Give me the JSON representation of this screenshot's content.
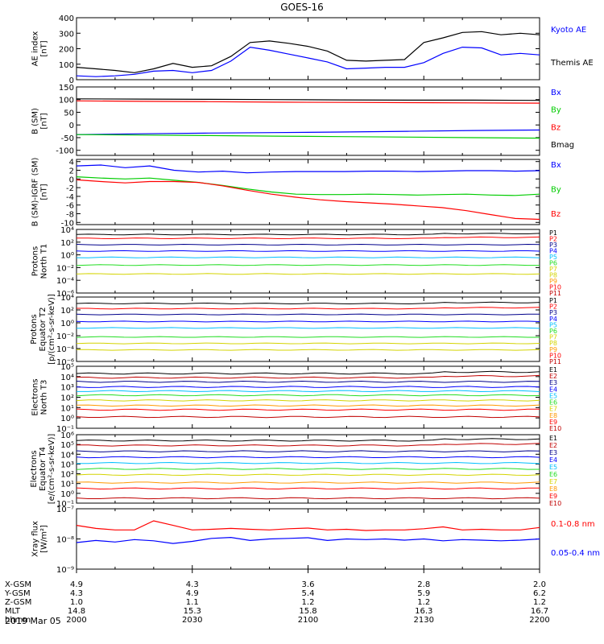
{
  "title": "GOES-16",
  "date_label": "2019 Mar 05",
  "colors": {
    "black": "#000000",
    "blue": "#0000ff",
    "green": "#00cc00",
    "red": "#ff0000",
    "navy": "#00008b",
    "cyan": "#00bfff",
    "teal": "#00c8c8",
    "lime": "#22dd22",
    "yellow": "#d4d400",
    "orange": "#ff9900",
    "darkred": "#c00000"
  },
  "chart_data": [
    {
      "id": "ae",
      "type": "line",
      "ylabel": [
        "AE index",
        "[nT]"
      ],
      "ylim": [
        0,
        400
      ],
      "yticks": [
        "0",
        "100",
        "200",
        "300",
        "400"
      ],
      "x_hhmm": [
        "2000",
        "2005",
        "2010",
        "2015",
        "2020",
        "2025",
        "2030",
        "2035",
        "2040",
        "2045",
        "2050",
        "2055",
        "2100",
        "2105",
        "2110",
        "2115",
        "2120",
        "2125",
        "2130",
        "2135",
        "2140",
        "2145",
        "2150",
        "2155",
        "2200"
      ],
      "series": [
        {
          "name": "Kyoto AE",
          "color": "blue",
          "values": [
            25,
            20,
            25,
            35,
            55,
            60,
            45,
            60,
            120,
            210,
            190,
            165,
            140,
            115,
            70,
            75,
            80,
            80,
            110,
            170,
            210,
            205,
            160,
            170,
            160
          ]
        },
        {
          "name": "Themis AE",
          "color": "black",
          "values": [
            80,
            70,
            60,
            45,
            70,
            105,
            80,
            90,
            150,
            240,
            250,
            235,
            215,
            185,
            125,
            120,
            125,
            130,
            240,
            270,
            305,
            310,
            290,
            300,
            290
          ]
        }
      ]
    },
    {
      "id": "b",
      "type": "line",
      "ylabel": [
        "B (SM)",
        "[nT]"
      ],
      "ylim": [
        -120,
        150
      ],
      "yticks": [
        "-100",
        "-50",
        "0",
        "50",
        "100",
        "150"
      ],
      "series": [
        {
          "name": "Bx",
          "color": "blue",
          "values": [
            -38,
            -35,
            -32,
            -30,
            -28,
            -25,
            -22,
            -20
          ]
        },
        {
          "name": "By",
          "color": "green",
          "values": [
            -38,
            -40,
            -42,
            -44,
            -46,
            -48,
            -50,
            -52
          ]
        },
        {
          "name": "Bz",
          "color": "red",
          "values": [
            95,
            93,
            92,
            90,
            89,
            88,
            87,
            86
          ]
        },
        {
          "name": "Bmag",
          "color": "black",
          "values": [
            103,
            102,
            101,
            100,
            99,
            98,
            98,
            97
          ]
        }
      ]
    },
    {
      "id": "bigrf",
      "type": "line",
      "ylabel": [
        "B (SM)-IGRF (SM)",
        "[nT]"
      ],
      "ylim": [
        -10.5,
        4.5
      ],
      "yticks": [
        "-10",
        "-8",
        "-6",
        "-4",
        "-2",
        "0",
        "2",
        "4"
      ],
      "series": [
        {
          "name": "Bx",
          "color": "blue",
          "values": [
            3.0,
            3.2,
            2.6,
            3.0,
            2.0,
            1.6,
            1.8,
            1.4,
            1.6,
            1.7,
            1.7,
            1.7,
            1.8,
            1.8,
            1.7,
            1.8,
            1.9,
            1.9,
            1.8,
            1.9
          ]
        },
        {
          "name": "By",
          "color": "green",
          "values": [
            0.5,
            0.2,
            0.0,
            0.2,
            -0.3,
            -0.8,
            -1.5,
            -2.3,
            -3.0,
            -3.5,
            -3.6,
            -3.6,
            -3.5,
            -3.6,
            -3.7,
            -3.6,
            -3.5,
            -3.7,
            -3.8,
            -3.5
          ]
        },
        {
          "name": "Bz",
          "color": "red",
          "values": [
            -0.2,
            -0.6,
            -0.9,
            -0.6,
            -0.6,
            -0.8,
            -1.6,
            -2.6,
            -3.5,
            -4.2,
            -4.8,
            -5.2,
            -5.5,
            -5.8,
            -6.2,
            -6.6,
            -7.3,
            -8.2,
            -9.1,
            -9.3
          ]
        }
      ]
    },
    {
      "id": "p_north",
      "type": "line",
      "ylabel": [
        "Protons",
        "North T1"
      ],
      "log": true,
      "ylim_exp": [
        -6,
        4
      ],
      "ytick_exps": [
        -6,
        -4,
        -2,
        0,
        2,
        4
      ],
      "channels": [
        {
          "name": "P1",
          "color": "black",
          "level": 3.2
        },
        {
          "name": "P2",
          "color": "red",
          "level": 2.6
        },
        {
          "name": "P3",
          "color": "navy",
          "level": 1.6
        },
        {
          "name": "P4",
          "color": "blue",
          "level": 0.6
        },
        {
          "name": "P5",
          "color": "cyan",
          "level": -0.4
        },
        {
          "name": "P6",
          "color": "lime",
          "level": -1.6
        },
        {
          "name": "P7",
          "color": "yellow",
          "level": -3.0
        },
        {
          "name": "P8",
          "color": "yellow",
          "level": null
        },
        {
          "name": "P9",
          "color": "orange",
          "level": null
        },
        {
          "name": "P10",
          "color": "red",
          "level": null
        },
        {
          "name": "P11",
          "color": "darkred",
          "level": null
        }
      ]
    },
    {
      "id": "p_equator",
      "type": "line",
      "ylabel": [
        "Protons",
        "Equator T2",
        "[p/(cm²-s-sr-keV)]"
      ],
      "log": true,
      "ylim_exp": [
        -6,
        4
      ],
      "ytick_exps": [
        -6,
        -4,
        -2,
        0,
        2,
        4
      ],
      "channels": [
        {
          "name": "P1",
          "color": "black",
          "level": 3.0
        },
        {
          "name": "P2",
          "color": "red",
          "level": 2.2
        },
        {
          "name": "P3",
          "color": "navy",
          "level": 1.3
        },
        {
          "name": "P4",
          "color": "blue",
          "level": 0.2
        },
        {
          "name": "P5",
          "color": "cyan",
          "level": -0.8
        },
        {
          "name": "P6",
          "color": "lime",
          "level": -2.2
        },
        {
          "name": "P7",
          "color": "yellow",
          "level": -3.2
        },
        {
          "name": "P8",
          "color": "yellow",
          "level": -4.2
        },
        {
          "name": "P9",
          "color": "orange",
          "level": null
        },
        {
          "name": "P10",
          "color": "red",
          "level": null
        },
        {
          "name": "P11",
          "color": "darkred",
          "level": null
        }
      ]
    },
    {
      "id": "e_north",
      "type": "line",
      "ylabel": [
        "Electrons",
        "North T3"
      ],
      "log": true,
      "ylim_exp": [
        -1,
        5
      ],
      "ytick_exps": [
        -1,
        0,
        1,
        2,
        3,
        4,
        5
      ],
      "channels": [
        {
          "name": "E1",
          "color": "black",
          "level": 4.3
        },
        {
          "name": "E2",
          "color": "darkred",
          "level": 3.9
        },
        {
          "name": "E3",
          "color": "navy",
          "level": 3.5
        },
        {
          "name": "E4",
          "color": "blue",
          "level": 3.0
        },
        {
          "name": "E5",
          "color": "cyan",
          "level": 2.6
        },
        {
          "name": "E6",
          "color": "lime",
          "level": 2.2
        },
        {
          "name": "E7",
          "color": "yellow",
          "level": 1.7
        },
        {
          "name": "E8",
          "color": "orange",
          "level": 1.2
        },
        {
          "name": "E9",
          "color": "red",
          "level": 0.8
        },
        {
          "name": "E10",
          "color": "darkred",
          "level": 0.1
        }
      ]
    },
    {
      "id": "e_equator",
      "type": "line",
      "ylabel": [
        "Electrons",
        "Equator T4",
        "[e/(cm²-s-sr-keV)]"
      ],
      "log": true,
      "ylim_exp": [
        -1,
        6
      ],
      "ytick_exps": [
        -1,
        0,
        1,
        2,
        3,
        4,
        5,
        6
      ],
      "channels": [
        {
          "name": "E1",
          "color": "black",
          "level": 5.4
        },
        {
          "name": "E2",
          "color": "darkred",
          "level": 4.9
        },
        {
          "name": "E3",
          "color": "navy",
          "level": 4.3
        },
        {
          "name": "E4",
          "color": "blue",
          "level": 3.7
        },
        {
          "name": "E5",
          "color": "cyan",
          "level": 3.1
        },
        {
          "name": "E6",
          "color": "lime",
          "level": 2.5
        },
        {
          "name": "E7",
          "color": "yellow",
          "level": 1.9
        },
        {
          "name": "E8",
          "color": "orange",
          "level": 1.1
        },
        {
          "name": "E9",
          "color": "red",
          "level": 0.5
        },
        {
          "name": "E10",
          "color": "darkred",
          "level": -0.5
        }
      ]
    },
    {
      "id": "xray",
      "type": "line",
      "ylabel": [
        "Xray flux",
        "[W/m²]"
      ],
      "log": true,
      "ylim_exp": [
        -9,
        -7
      ],
      "ytick_exps": [
        -9,
        -8,
        -7
      ],
      "series": [
        {
          "name": "0.1-0.8 nm",
          "color": "red",
          "values": [
            -7.55,
            -7.65,
            -7.7,
            -7.7,
            -7.4,
            -7.55,
            -7.7,
            -7.68,
            -7.65,
            -7.68,
            -7.7,
            -7.66,
            -7.64,
            -7.7,
            -7.68,
            -7.72,
            -7.7,
            -7.7,
            -7.66,
            -7.6,
            -7.7,
            -7.68,
            -7.7,
            -7.7,
            -7.62
          ]
        },
        {
          "name": "0.05-0.4 nm",
          "color": "blue",
          "values": [
            -8.12,
            -8.05,
            -8.1,
            -8.02,
            -8.06,
            -8.15,
            -8.08,
            -7.98,
            -7.95,
            -8.05,
            -8.0,
            -7.98,
            -7.96,
            -8.05,
            -8.0,
            -8.02,
            -8.0,
            -8.04,
            -8.0,
            -8.06,
            -8.02,
            -8.04,
            -8.06,
            -8.04,
            -8.0
          ]
        }
      ]
    }
  ],
  "footer": {
    "row_labels": [
      "X-GSM",
      "Y-GSM",
      "Z-GSM",
      "MLT",
      "hhmm"
    ],
    "columns": [
      [
        "4.9",
        "4.3",
        "1.0",
        "14.8",
        "2000"
      ],
      [
        "4.3",
        "4.9",
        "1.1",
        "15.3",
        "2030"
      ],
      [
        "3.6",
        "5.4",
        "1.2",
        "15.8",
        "2100"
      ],
      [
        "2.8",
        "5.9",
        "1.2",
        "16.3",
        "2130"
      ],
      [
        "2.0",
        "6.2",
        "1.2",
        "16.7",
        "2200"
      ]
    ]
  }
}
